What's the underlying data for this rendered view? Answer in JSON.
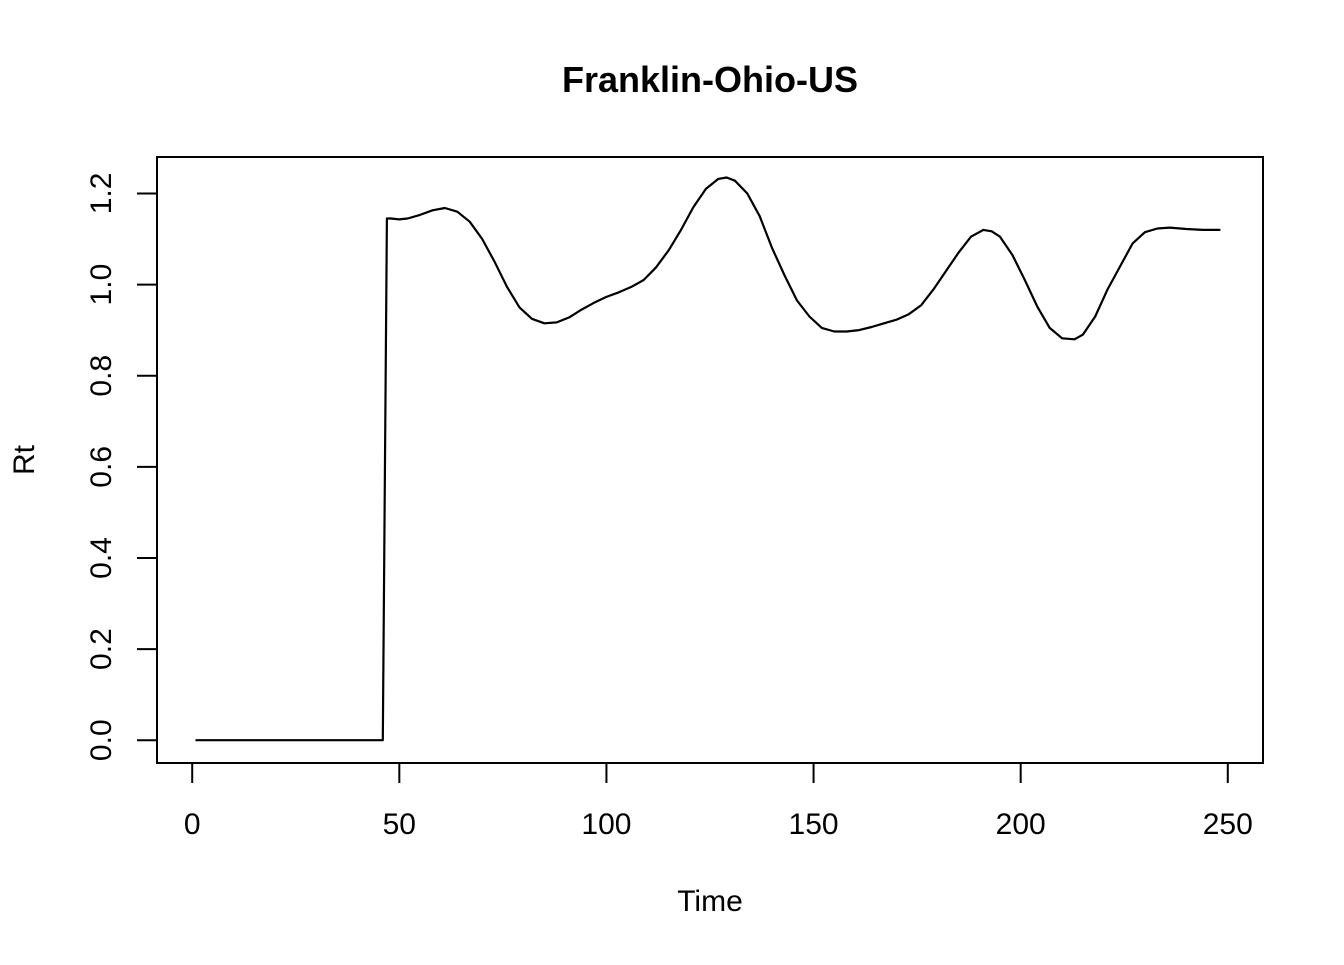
{
  "chart_data": {
    "type": "line",
    "title": "Franklin-Ohio-US",
    "xlabel": "Time",
    "ylabel": "Rt",
    "xlim": [
      -8.5,
      258.5
    ],
    "ylim": [
      -0.05,
      1.28
    ],
    "xticks": [
      0,
      50,
      100,
      150,
      200,
      250
    ],
    "xtick_labels": [
      "0",
      "50",
      "100",
      "150",
      "200",
      "250"
    ],
    "yticks": [
      0.0,
      0.2,
      0.4,
      0.6,
      0.8,
      1.0,
      1.2
    ],
    "ytick_labels": [
      "0.0",
      "0.2",
      "0.4",
      "0.6",
      "0.8",
      "1.0",
      "1.2"
    ],
    "grid": false,
    "line_color": "#000000",
    "series": [
      {
        "x": [
          1,
          10,
          20,
          30,
          40,
          46,
          47,
          48,
          50,
          52,
          55,
          58,
          61,
          64,
          67,
          70,
          73,
          76,
          79,
          82,
          85,
          88,
          91,
          94,
          97,
          100,
          103,
          106,
          109,
          112,
          115,
          118,
          121,
          124,
          127,
          129,
          131,
          134,
          137,
          140,
          143,
          146,
          149,
          152,
          155,
          158,
          161,
          164,
          167,
          170,
          173,
          176,
          179,
          182,
          185,
          188,
          191,
          193,
          195,
          198,
          201,
          204,
          207,
          210,
          213,
          215,
          218,
          221,
          224,
          227,
          230,
          233,
          236,
          240,
          244,
          248
        ],
        "y": [
          0.0,
          0.0,
          0.0,
          0.0,
          0.0,
          0.0,
          1.145,
          1.145,
          1.143,
          1.145,
          1.153,
          1.163,
          1.168,
          1.16,
          1.138,
          1.1,
          1.05,
          0.995,
          0.95,
          0.925,
          0.915,
          0.917,
          0.928,
          0.945,
          0.96,
          0.973,
          0.983,
          0.995,
          1.01,
          1.038,
          1.075,
          1.12,
          1.17,
          1.21,
          1.232,
          1.235,
          1.228,
          1.2,
          1.15,
          1.08,
          1.02,
          0.965,
          0.93,
          0.905,
          0.897,
          0.897,
          0.9,
          0.907,
          0.915,
          0.923,
          0.935,
          0.955,
          0.99,
          1.03,
          1.07,
          1.105,
          1.12,
          1.117,
          1.105,
          1.065,
          1.01,
          0.952,
          0.905,
          0.882,
          0.88,
          0.89,
          0.93,
          0.99,
          1.04,
          1.09,
          1.115,
          1.123,
          1.125,
          1.122,
          1.12,
          1.12
        ]
      }
    ]
  }
}
